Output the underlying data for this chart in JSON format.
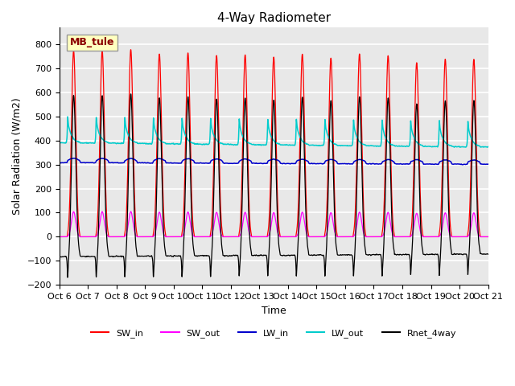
{
  "title": "4-Way Radiometer",
  "xlabel": "Time",
  "ylabel": "Solar Radiation (W/m2)",
  "ylim": [
    -200,
    870
  ],
  "yticks": [
    -200,
    -100,
    0,
    100,
    200,
    300,
    400,
    500,
    600,
    700,
    800
  ],
  "num_days": 15,
  "pts_per_day": 288,
  "colors": {
    "SW_in": "#FF0000",
    "SW_out": "#FF00FF",
    "LW_in": "#0000CC",
    "LW_out": "#00CCCC",
    "Rnet_4way": "#000000"
  },
  "legend_labels": [
    "SW_in",
    "SW_out",
    "LW_in",
    "LW_out",
    "Rnet_4way"
  ],
  "annotation_text": "MB_tule",
  "annotation_color": "#8B0000",
  "annotation_bg": "#FFFFC0",
  "bg_color": "#E8E8E8",
  "grid_color": "#FFFFFF",
  "xtick_labels": [
    "Oct 6",
    "Oct 7",
    "Oct 8",
    "Oct 9",
    "Oct 10",
    "Oct 11",
    "Oct 12",
    "Oct 13",
    "Oct 14",
    "Oct 15",
    "Oct 16",
    "Oct 17",
    "Oct 18",
    "Oct 19",
    "Oct 20",
    "Oct 21"
  ],
  "x_tick_positions": [
    0,
    1,
    2,
    3,
    4,
    5,
    6,
    7,
    8,
    9,
    10,
    11,
    12,
    13,
    14,
    15
  ]
}
